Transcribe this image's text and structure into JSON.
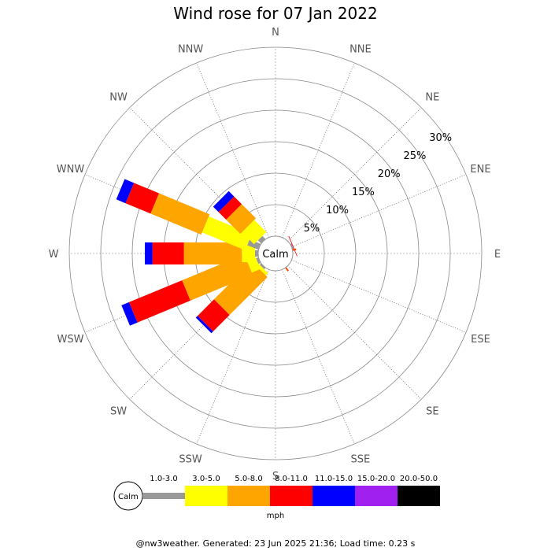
{
  "chart_data": {
    "type": "wind-rose",
    "title": "Wind rose for 07 Jan 2022",
    "directions": [
      "N",
      "NNE",
      "NE",
      "ENE",
      "E",
      "ESE",
      "SE",
      "SSE",
      "S",
      "SSW",
      "SW",
      "WSW",
      "W",
      "WNW",
      "NW",
      "NNW"
    ],
    "radial_ticks": [
      "5%",
      "10%",
      "15%",
      "20%",
      "25%",
      "30%"
    ],
    "radial_values": [
      5,
      10,
      15,
      20,
      25,
      30
    ],
    "center_label": "Calm",
    "speed_bins": [
      "1.0-3.0",
      "3.0-5.0",
      "5.0-8.0",
      "8.0-11.0",
      "11.0-15.0",
      "15.0-20.0",
      "20.0-50.0"
    ],
    "bin_colors": [
      "#999999",
      "#ffff00",
      "#ffa500",
      "#ff0000",
      "#0000ff",
      "#a020f0",
      "#000000"
    ],
    "units": "mph",
    "cumulative_pct": {
      "N": [
        0,
        0,
        0,
        0,
        0,
        0,
        0
      ],
      "NNE": [
        0,
        0,
        0,
        0,
        0,
        0,
        0
      ],
      "NE": [
        0,
        0,
        0,
        0,
        0,
        0,
        0
      ],
      "ENE": [
        0.2,
        0.2,
        0.2,
        0.3,
        0.3,
        0.3,
        0.3
      ],
      "E": [
        0,
        0,
        0,
        0,
        0,
        0,
        0
      ],
      "ESE": [
        0,
        0,
        0,
        0,
        0,
        0,
        0
      ],
      "SE": [
        0,
        0,
        0,
        0,
        0,
        0,
        0
      ],
      "SSE": [
        0,
        0,
        0,
        0,
        0,
        0,
        0
      ],
      "S": [
        0,
        0,
        0,
        0,
        0,
        0,
        0
      ],
      "SSW": [
        0,
        0,
        0,
        0,
        0,
        0,
        0
      ],
      "SW": [
        0.3,
        0.8,
        9.3,
        13.0,
        13.4,
        13.4,
        13.4
      ],
      "WSW": [
        0.4,
        1.9,
        12.6,
        21.7,
        23.0,
        23.0,
        23.0
      ],
      "W": [
        0.5,
        2.6,
        11.8,
        16.8,
        18.0,
        18.0,
        18.0
      ],
      "WNW": [
        1.9,
        9.3,
        18.0,
        22.3,
        23.9,
        23.9,
        23.9
      ],
      "NW": [
        0.7,
        3.4,
        6.6,
        8.3,
        9.5,
        9.5,
        9.5
      ],
      "NNW": [
        0,
        0,
        0,
        0,
        0,
        0,
        0
      ]
    },
    "minor_sectors": {
      "ESE": [
        0.4
      ]
    }
  },
  "footer": "@nw3weather. Generated: 23 Jun 2025 21:36; Load time: 0.23 s"
}
